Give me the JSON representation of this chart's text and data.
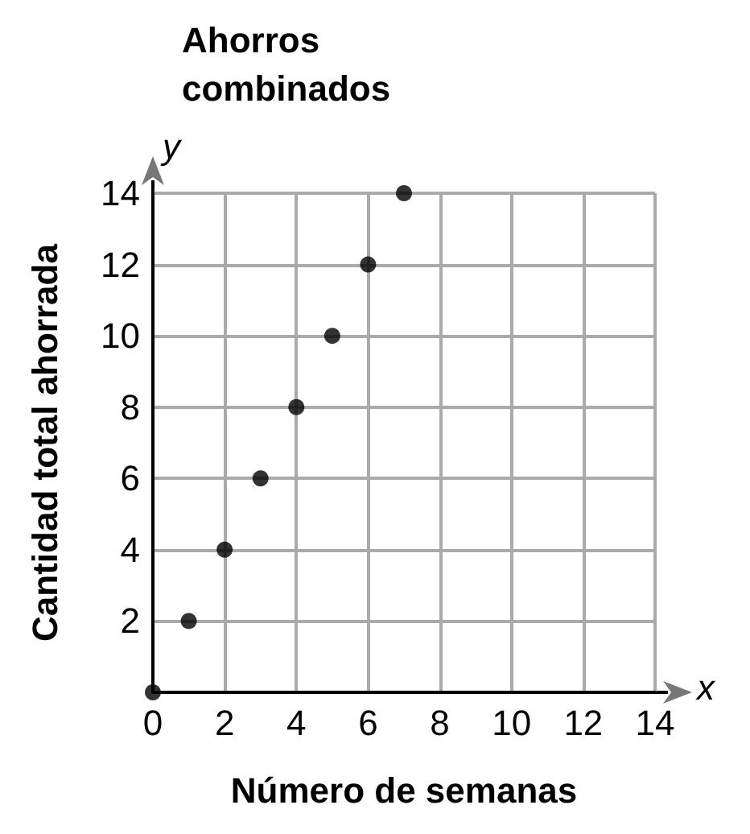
{
  "chart_data": {
    "type": "scatter",
    "title": "Ahorros\ncombinados",
    "xlabel": "Número de semanas",
    "ylabel": "Cantidad total ahorrada",
    "x": [
      0,
      1,
      2,
      3,
      4,
      5,
      6,
      7
    ],
    "values": [
      0,
      2,
      4,
      6,
      8,
      10,
      12,
      14
    ],
    "color": "#000000",
    "marker": "circle",
    "grid": true,
    "xlim": [
      0,
      14
    ],
    "xticks": [
      0,
      2,
      4,
      6,
      8,
      10,
      12,
      14
    ],
    "ylim": [
      0,
      14
    ],
    "yticks": [
      {
        "value": 0,
        "label": null
      },
      2,
      4,
      6,
      8,
      10,
      12,
      14
    ],
    "annotations": [
      "x",
      "y"
    ]
  }
}
